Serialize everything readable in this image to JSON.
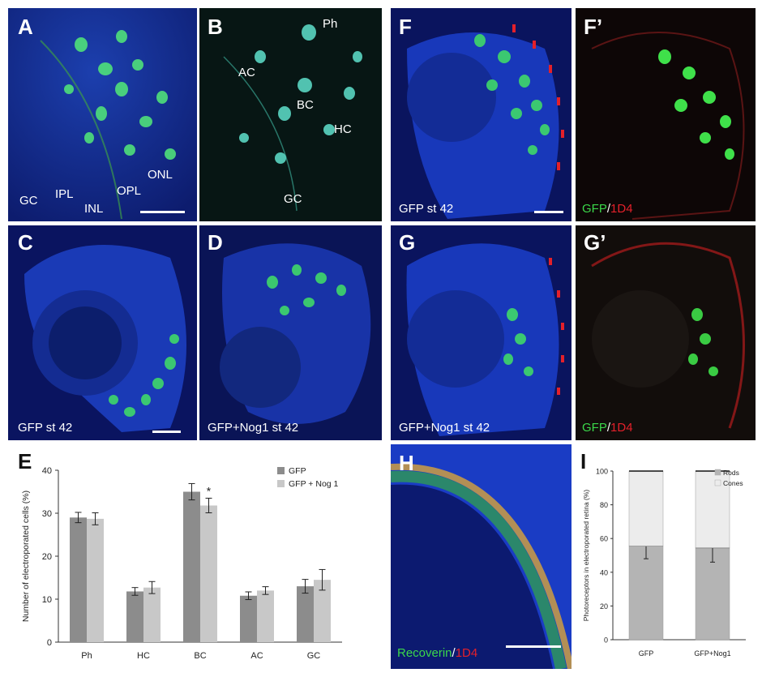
{
  "panels": {
    "A": {
      "label": "A",
      "layers": [
        "GC",
        "IPL",
        "INL",
        "OPL",
        "ONL"
      ]
    },
    "B": {
      "label": "B",
      "cells": [
        "Ph",
        "AC",
        "BC",
        "HC",
        "GC"
      ]
    },
    "C": {
      "label": "C",
      "caption": "GFP st 42"
    },
    "D": {
      "label": "D",
      "caption": "GFP+Nog1 st 42"
    },
    "E": {
      "label": "E"
    },
    "F": {
      "label": "F",
      "caption": "GFP st 42"
    },
    "F2": {
      "label": "F’",
      "stain_green": "GFP",
      "sep": "/",
      "stain_red": "1D4"
    },
    "G": {
      "label": "G",
      "caption": "GFP+Nog1 st 42"
    },
    "G2": {
      "label": "G’",
      "stain_green": "GFP",
      "sep": "/",
      "stain_red": "1D4"
    },
    "H": {
      "label": "H",
      "stain_green": "Recoverin",
      "sep": "/",
      "stain_red": "1D4"
    },
    "I": {
      "label": "I"
    }
  },
  "chart_data": [
    {
      "type": "bar",
      "panel": "E",
      "categories": [
        "Ph",
        "HC",
        "BC",
        "AC",
        "GC"
      ],
      "series": [
        {
          "name": "GFP",
          "values": [
            29,
            11.8,
            35,
            10.8,
            13
          ],
          "errors": [
            1.2,
            0.9,
            1.9,
            0.9,
            1.6
          ]
        },
        {
          "name": "GFP + Nog 1",
          "values": [
            28.7,
            12.7,
            31.8,
            12,
            14.5
          ],
          "errors": [
            1.4,
            1.4,
            1.7,
            0.9,
            2.4
          ]
        }
      ],
      "significance": [
        {
          "category": "BC",
          "mark": "*"
        }
      ],
      "ylabel": "Number of electroporated cells (%)",
      "ylim": [
        0,
        40
      ],
      "yticks": [
        0,
        10,
        20,
        30,
        40
      ],
      "legend": "top-right",
      "colors": [
        "#8c8c8c",
        "#c8c8c8"
      ]
    },
    {
      "type": "bar",
      "panel": "I",
      "stacked": true,
      "categories": [
        "GFP",
        "GFP+Nog1"
      ],
      "series": [
        {
          "name": "Rods",
          "values": [
            55.5,
            54.5
          ],
          "errors": [
            7.5,
            8.5
          ]
        },
        {
          "name": "Cones",
          "values": [
            44.5,
            45.5
          ]
        }
      ],
      "ylabel": "Photoreceptors in electroporated retina (%)",
      "ylim": [
        0,
        100
      ],
      "yticks": [
        0,
        20,
        40,
        60,
        80,
        100
      ],
      "legend": "top-right",
      "colors": [
        "#b4b4b4",
        "#ececec"
      ]
    }
  ]
}
